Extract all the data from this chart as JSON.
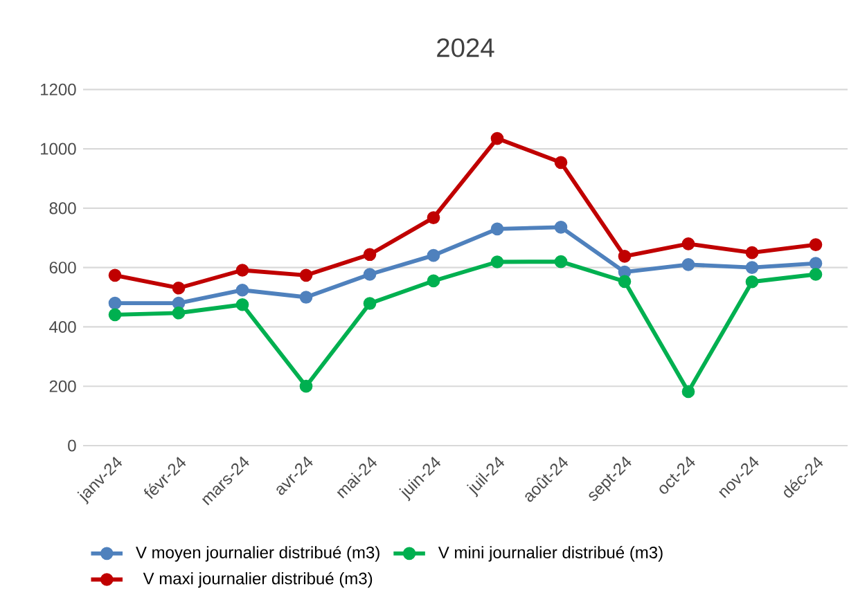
{
  "chart_data": {
    "type": "line",
    "title": "2024",
    "categories": [
      "janv-24",
      "févr-24",
      "mars-24",
      "avr-24",
      "mai-24",
      "juin-24",
      "juil-24",
      "août-24",
      "sept-24",
      "oct-24",
      "nov-24",
      "déc-24"
    ],
    "series": [
      {
        "name": "V moyen journalier distribué (m3)",
        "color": "#4f81bd",
        "values": [
          480,
          480,
          524,
          500,
          577,
          641,
          730,
          736,
          585,
          610,
          600,
          614
        ]
      },
      {
        "name": "V mini journalier  distribué (m3)",
        "color": "#00b050",
        "values": [
          441,
          447,
          475,
          200,
          479,
          555,
          619,
          620,
          553,
          182,
          552,
          577
        ]
      },
      {
        "name": "V maxi journalier distribué (m3)",
        "color": "#c00000",
        "values": [
          574,
          531,
          591,
          574,
          644,
          768,
          1035,
          954,
          638,
          680,
          650,
          677
        ]
      }
    ],
    "ylim": [
      0,
      1200
    ],
    "yticks": [
      0,
      200,
      400,
      600,
      800,
      1000,
      1200
    ],
    "grid": "y",
    "legend": "bottom",
    "marker": "circle",
    "line_style": "solid"
  }
}
